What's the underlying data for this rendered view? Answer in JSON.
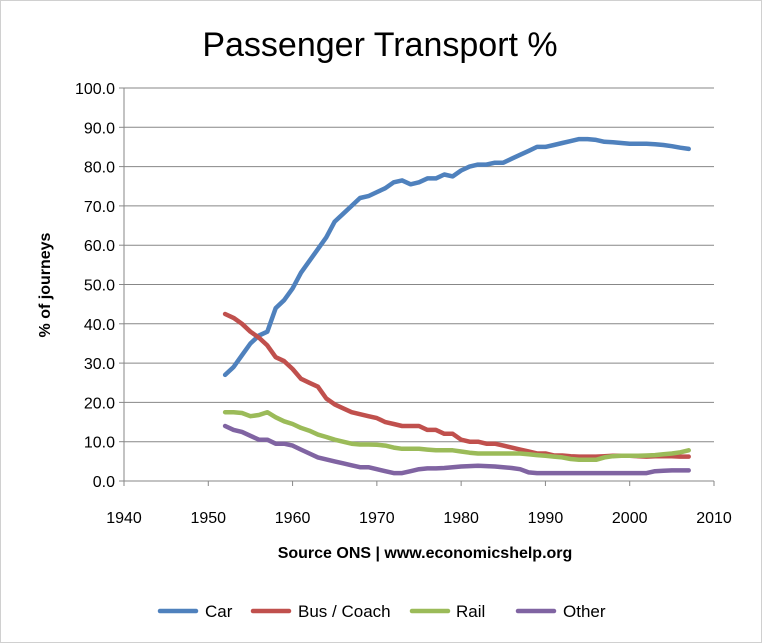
{
  "chart_data": {
    "type": "line",
    "title": "Passenger Transport %",
    "xlabel": "Source ONS | www.economicshelp.org",
    "ylabel": "% of journeys",
    "xlim": [
      1940,
      2010
    ],
    "ylim": [
      0,
      100
    ],
    "x_ticks": [
      "1940",
      "1950",
      "1960",
      "1970",
      "1980",
      "1990",
      "2000",
      "2010"
    ],
    "y_ticks": [
      "0.0",
      "10.0",
      "20.0",
      "30.0",
      "40.0",
      "50.0",
      "60.0",
      "70.0",
      "80.0",
      "90.0",
      "100.0"
    ],
    "grid": "horizontal",
    "legend_position": "bottom",
    "x": [
      1952,
      1953,
      1954,
      1955,
      1956,
      1957,
      1958,
      1959,
      1960,
      1961,
      1962,
      1963,
      1964,
      1965,
      1966,
      1967,
      1968,
      1969,
      1970,
      1971,
      1972,
      1973,
      1974,
      1975,
      1976,
      1977,
      1978,
      1979,
      1980,
      1981,
      1982,
      1983,
      1984,
      1985,
      1986,
      1987,
      1988,
      1989,
      1990,
      1991,
      1992,
      1993,
      1994,
      1995,
      1996,
      1997,
      1998,
      1999,
      2000,
      2001,
      2002,
      2003,
      2004,
      2005,
      2006,
      2007
    ],
    "series": [
      {
        "name": "Car",
        "color": "#4F81BD",
        "values": [
          27,
          29,
          32,
          35,
          37,
          38,
          44,
          46,
          49,
          53,
          56,
          59,
          62,
          66,
          68,
          70,
          72,
          72.5,
          73.5,
          74.5,
          76,
          76.5,
          75.5,
          76,
          77,
          77,
          78,
          77.5,
          79,
          80,
          80.5,
          80.5,
          81,
          81,
          82,
          83,
          84,
          85,
          85,
          85.5,
          86,
          86.5,
          87,
          87,
          86.8,
          86.3,
          86.2,
          86,
          85.8,
          85.8,
          85.8,
          85.7,
          85.5,
          85.2,
          84.8,
          84.5
        ]
      },
      {
        "name": "Bus / Coach",
        "color": "#C0504D",
        "values": [
          42.5,
          41.5,
          40,
          38,
          36.5,
          34.5,
          31.5,
          30.5,
          28.5,
          26,
          25,
          24,
          21,
          19.5,
          18.5,
          17.5,
          17,
          16.5,
          16,
          15,
          14.5,
          14,
          14,
          14,
          13,
          13,
          12,
          12,
          10.5,
          10,
          10,
          9.5,
          9.5,
          9,
          8.5,
          8,
          7.5,
          7,
          7,
          6.5,
          6.5,
          6.3,
          6.2,
          6.2,
          6.2,
          6.3,
          6.4,
          6.4,
          6.4,
          6.3,
          6.2,
          6.3,
          6.3,
          6.3,
          6.2,
          6.2
        ]
      },
      {
        "name": "Rail",
        "color": "#9BBB59",
        "values": [
          17.5,
          17.5,
          17.3,
          16.5,
          16.8,
          17.5,
          16.2,
          15.2,
          14.5,
          13.5,
          12.8,
          11.8,
          11.2,
          10.5,
          10,
          9.5,
          9.3,
          9.3,
          9.2,
          9,
          8.5,
          8.2,
          8.2,
          8.2,
          8,
          7.8,
          7.8,
          7.8,
          7.5,
          7.2,
          7,
          7,
          7,
          7,
          7,
          7,
          6.8,
          6.6,
          6.4,
          6.2,
          6,
          5.6,
          5.4,
          5.4,
          5.4,
          6,
          6.3,
          6.4,
          6.4,
          6.4,
          6.5,
          6.6,
          6.8,
          7,
          7.3,
          7.8
        ]
      },
      {
        "name": "Other",
        "color": "#8064A2",
        "values": [
          14,
          13,
          12.5,
          11.5,
          10.5,
          10.5,
          9.5,
          9.5,
          9,
          8,
          7,
          6,
          5.5,
          5,
          4.5,
          4,
          3.5,
          3.5,
          3,
          2.5,
          2,
          2,
          2.5,
          3,
          3.2,
          3.2,
          3.3,
          3.5,
          3.7,
          3.8,
          3.9,
          3.8,
          3.7,
          3.5,
          3.3,
          3,
          2.2,
          2,
          2,
          2,
          2,
          2,
          2,
          2,
          2,
          2,
          2,
          2,
          2,
          2,
          2,
          2.5,
          2.6,
          2.7,
          2.7,
          2.7
        ]
      }
    ]
  }
}
